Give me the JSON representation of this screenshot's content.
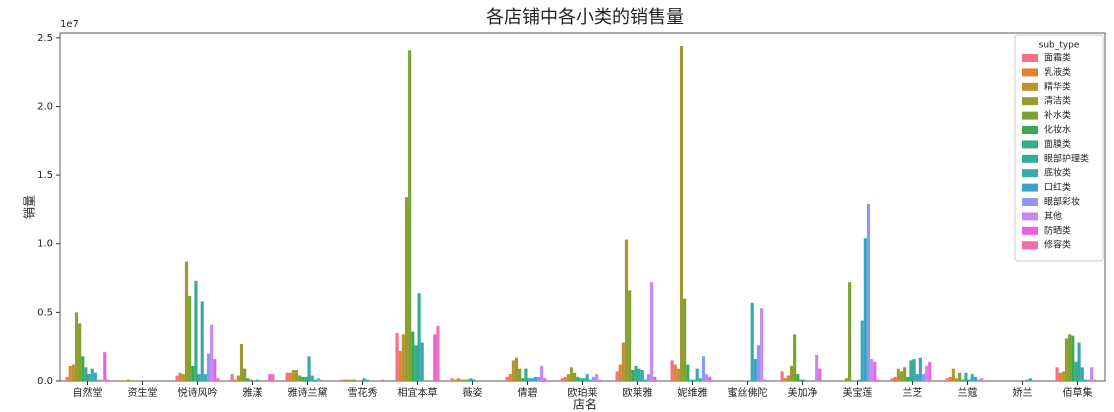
{
  "chart_data": {
    "type": "bar",
    "title": "各店铺中各小类的销售量",
    "x_label": "店名",
    "y_label": "销量",
    "y_offset_label": "1e7",
    "legend_title": "sub_type",
    "legend": "upper right",
    "categories": [
      "自然堂",
      "资生堂",
      "悦诗风吟",
      "雅漾",
      "雅诗兰黛",
      "雪花秀",
      "相宜本草",
      "薇姿",
      "倩碧",
      "欧珀莱",
      "欧莱雅",
      "妮维雅",
      "蜜丝佛陀",
      "美加净",
      "美宝莲",
      "兰芝",
      "兰蔻",
      "娇兰",
      "佰草集"
    ],
    "ylim": [
      0,
      2.55
    ],
    "yticks": [
      {
        "value": 0,
        "label": "0.0"
      },
      {
        "value": 0.5,
        "label": "0.5"
      },
      {
        "value": 1,
        "label": "1.0"
      },
      {
        "value": 1.5,
        "label": "1.5"
      },
      {
        "value": 2,
        "label": "2.0"
      },
      {
        "value": 2.5,
        "label": "2.5"
      }
    ],
    "series": [
      {
        "name": "面霜类",
        "color": "#f37185",
        "values": [
          0.03,
          0,
          0.04,
          0.05,
          0.06,
          0.01,
          0.35,
          0.02,
          0.03,
          0.02,
          0.07,
          0.15,
          0,
          0.07,
          0,
          0.02,
          0.02,
          0,
          0.1
        ]
      },
      {
        "name": "乳液类",
        "color": "#dc8336",
        "values": [
          0.11,
          0.005,
          0.06,
          0.01,
          0.06,
          0.01,
          0.22,
          0.01,
          0.05,
          0.03,
          0.12,
          0.12,
          0,
          0.02,
          0,
          0.03,
          0.03,
          0,
          0.06
        ]
      },
      {
        "name": "精华类",
        "color": "#b99232",
        "values": [
          0.12,
          0.01,
          0.05,
          0.04,
          0.08,
          0.01,
          0.34,
          0.02,
          0.15,
          0.05,
          0.28,
          0.09,
          0,
          0.04,
          0,
          0.09,
          0.09,
          0,
          0.07
        ]
      },
      {
        "name": "清洁类",
        "color": "#9a9a31",
        "values": [
          0.5,
          0.005,
          0.87,
          0.27,
          0.08,
          0.01,
          1.34,
          0.01,
          0.17,
          0.1,
          1.03,
          2.44,
          0,
          0.11,
          0.02,
          0.07,
          0.02,
          0,
          0.31
        ]
      },
      {
        "name": "补水类",
        "color": "#7ca231",
        "values": [
          0.42,
          0.005,
          0.62,
          0.09,
          0.04,
          0.01,
          2.41,
          0.01,
          0.09,
          0.06,
          0.66,
          0.6,
          0,
          0.34,
          0.72,
          0.1,
          0.06,
          0,
          0.34
        ]
      },
      {
        "name": "化妆水",
        "color": "#3aa953",
        "values": [
          0.18,
          0,
          0.11,
          0.02,
          0.03,
          0,
          0.36,
          0.01,
          0.02,
          0.03,
          0.08,
          0.12,
          0,
          0.05,
          0,
          0.03,
          0.01,
          0,
          0.33
        ]
      },
      {
        "name": "面膜类",
        "color": "#36ad8a",
        "values": [
          0.1,
          0,
          0.73,
          0.01,
          0.03,
          0,
          0.26,
          0.02,
          0.09,
          0.02,
          0.11,
          0.01,
          0,
          0.01,
          0,
          0.15,
          0.06,
          0,
          0.14
        ]
      },
      {
        "name": "眼部护理类",
        "color": "#37aaa0",
        "values": [
          0.05,
          0,
          0.05,
          0,
          0.18,
          0.02,
          0.64,
          0.01,
          0.02,
          0.02,
          0.09,
          0.01,
          0,
          0.01,
          0.01,
          0.16,
          0.01,
          0,
          0.28
        ]
      },
      {
        "name": "底妆类",
        "color": "#38a8b2",
        "values": [
          0.09,
          0,
          0.58,
          0.01,
          0.04,
          0.01,
          0.28,
          0,
          0.02,
          0.05,
          0.08,
          0.09,
          0.57,
          0,
          0.44,
          0.05,
          0.05,
          0.01,
          0.1
        ]
      },
      {
        "name": "口红类",
        "color": "#3ba3c7",
        "values": [
          0.06,
          0,
          0.05,
          0,
          0.01,
          0,
          0,
          0,
          0.03,
          0.01,
          0.01,
          0.02,
          0.16,
          0,
          1.04,
          0.17,
          0.03,
          0.02,
          0.01
        ]
      },
      {
        "name": "眼部彩妆",
        "color": "#8d98ef",
        "values": [
          0.01,
          0,
          0.2,
          0,
          0.02,
          0,
          0,
          0,
          0.03,
          0.03,
          0.05,
          0.18,
          0.26,
          0,
          1.29,
          0.05,
          0.01,
          0,
          0.01
        ]
      },
      {
        "name": "其他",
        "color": "#c48af2",
        "values": [
          0.01,
          0,
          0.41,
          0,
          0.01,
          0,
          0,
          0,
          0.11,
          0.05,
          0.72,
          0.05,
          0.53,
          0.19,
          0.16,
          0.11,
          0.02,
          0,
          0.1
        ]
      },
      {
        "name": "防晒类",
        "color": "#ec61e0",
        "values": [
          0.21,
          0,
          0.16,
          0.05,
          0,
          0,
          0.34,
          0,
          0.02,
          0.01,
          0.03,
          0.03,
          0.01,
          0.09,
          0.14,
          0.14,
          0,
          0,
          0.01
        ]
      },
      {
        "name": "修容类",
        "color": "#f56ab0",
        "values": [
          0.01,
          0,
          0.02,
          0.05,
          0,
          0.01,
          0.4,
          0,
          0,
          0,
          0,
          0,
          0,
          0,
          0.01,
          0,
          0,
          0,
          0
        ]
      }
    ]
  }
}
